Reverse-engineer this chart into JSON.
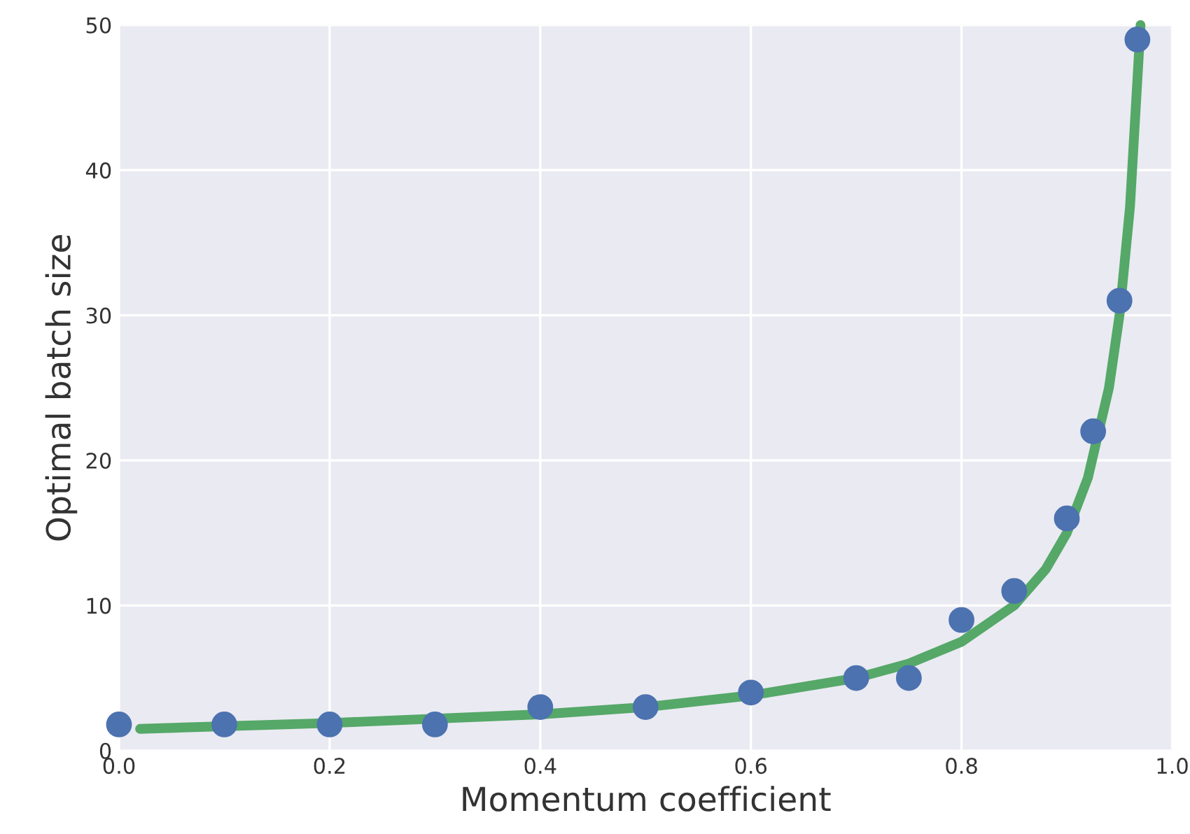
{
  "chart_data": {
    "type": "scatter",
    "xlabel": "Momentum coefficient",
    "ylabel": "Optimal batch size",
    "xlim": [
      0,
      1.0
    ],
    "ylim": [
      0,
      50
    ],
    "xticks": [
      {
        "value": 0,
        "label": "0.0"
      },
      0.2,
      0.4,
      0.6,
      0.8,
      {
        "value": 1.0,
        "label": "1.0"
      }
    ],
    "yticks": [
      0,
      10,
      20,
      30,
      40,
      50
    ],
    "grid": true,
    "series": [
      {
        "type": "line",
        "color": "#55a868",
        "marker": "none",
        "x": [
          0.02,
          0.2,
          0.4,
          0.5,
          0.6,
          0.7,
          0.75,
          0.8,
          0.85,
          0.88,
          0.9,
          0.92,
          0.94,
          0.95,
          0.96,
          0.97
        ],
        "values": [
          1.5,
          1.9,
          2.5,
          3,
          3.8,
          5,
          6,
          7.5,
          10,
          12.5,
          15,
          18.8,
          25,
          30,
          37.5,
          50
        ]
      },
      {
        "color": "#4c72b0",
        "marker": "circle",
        "x": [
          0,
          0.1,
          0.2,
          0.3,
          0.4,
          0.5,
          0.6,
          0.7,
          0.75,
          0.8,
          0.85,
          0.9,
          0.925,
          0.95,
          0.967
        ],
        "values": [
          1.8,
          1.8,
          1.8,
          1.8,
          3,
          3,
          4,
          5,
          5,
          9,
          11,
          16,
          22,
          31,
          49
        ]
      }
    ]
  }
}
